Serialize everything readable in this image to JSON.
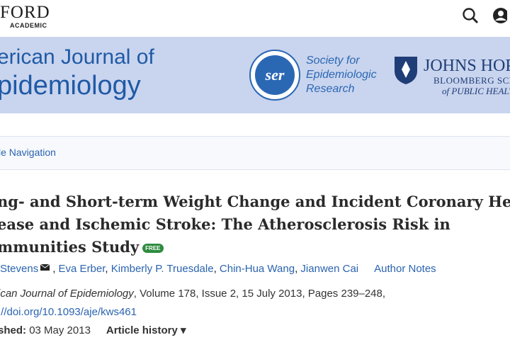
{
  "header": {
    "brand": "FORD",
    "brand_sub": "ACADEMIC"
  },
  "banner": {
    "journal_line1": "erican Journal of",
    "journal_line2": "pidemiology",
    "society": [
      "Society for",
      "Epidemiologic",
      "Research"
    ],
    "school": [
      "JOHNS HOP",
      "BLOOMBERG SCHO",
      "of PUBLIC HEALT"
    ]
  },
  "navigation": "le Navigation",
  "article": {
    "title_lines": [
      "ng- and Short-term Weight Change and Incident Coronary Hea",
      "ease and Ischemic Stroke: The Atherosclerosis Risk in",
      "mmunities Study"
    ],
    "badge": "FREE",
    "authors": [
      "Stevens",
      "Eva Erber",
      "Kimberly P. Truesdale",
      "Chin-Hua Wang",
      "Jianwen Cai"
    ],
    "author_notes": "Author Notes",
    "citation_journal": "ican Journal of Epidemiology",
    "citation_details": ", Volume 178, Issue 2, 15 July 2013, Pages 239–248,",
    "doi": "://doi.org/10.1093/aje/kws461",
    "published_label": "shed:",
    "published_date": "03 May 2013",
    "history": "Article history ▾"
  }
}
